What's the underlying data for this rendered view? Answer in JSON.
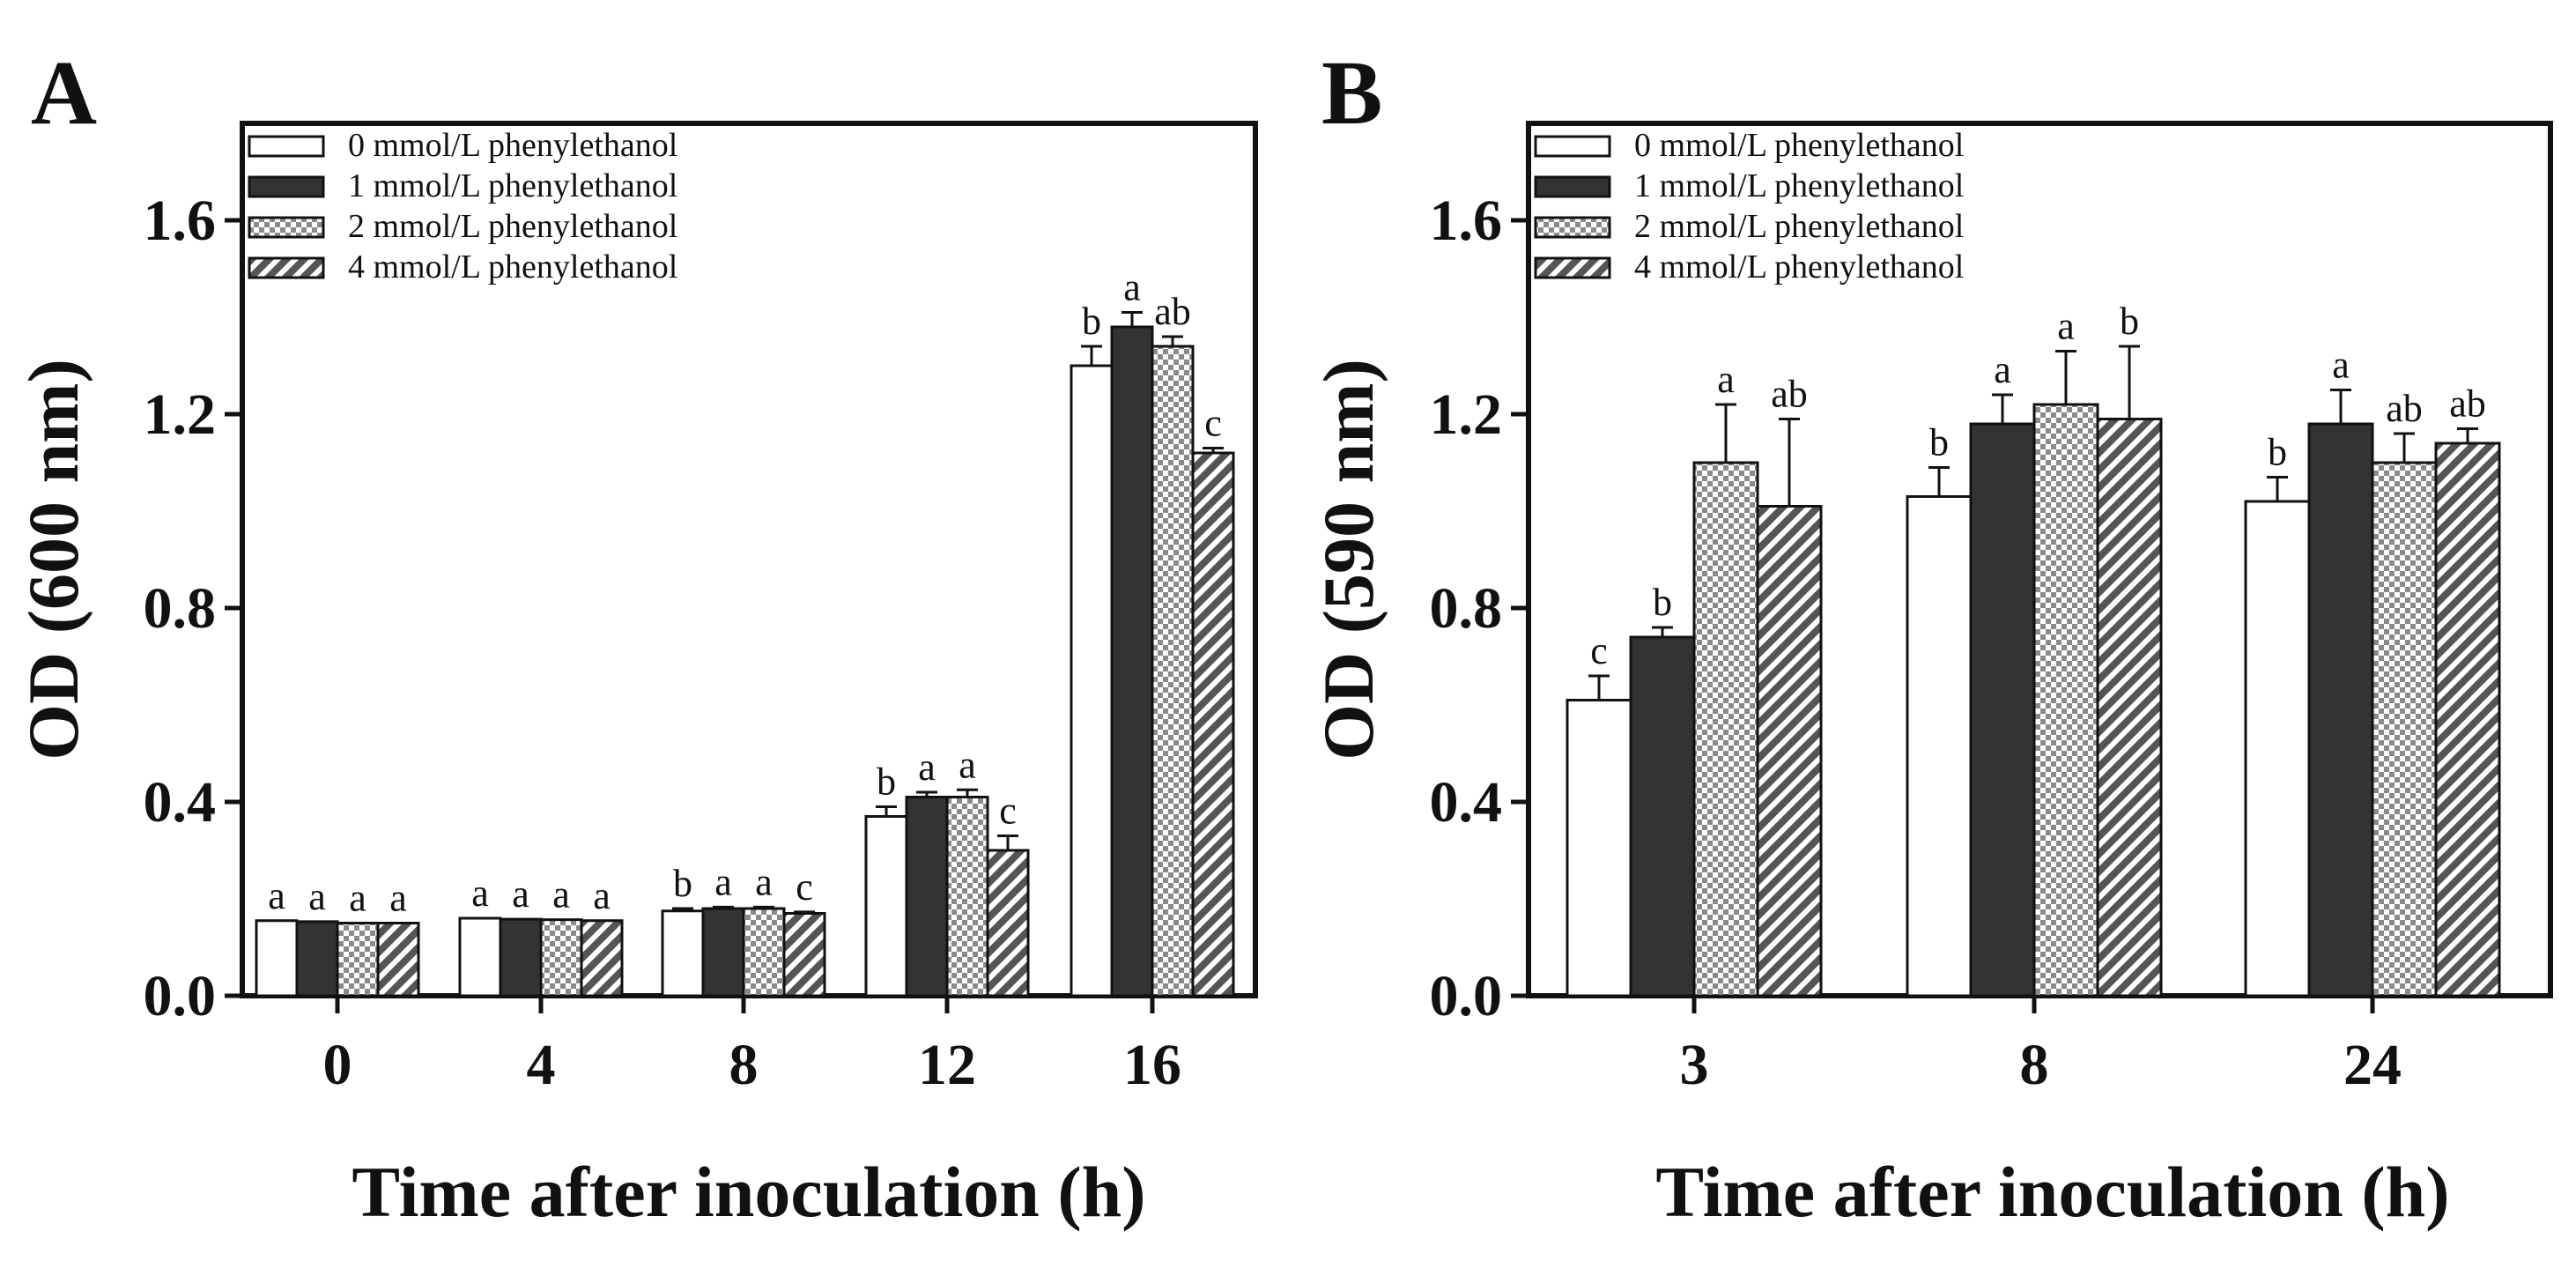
{
  "legend": {
    "entries": [
      {
        "label": "0 mmol/L phenylethanol",
        "fill": "white"
      },
      {
        "label": "1 mmol/L phenylethanol",
        "fill": "dark"
      },
      {
        "label": "2 mmol/L phenylethanol",
        "fill": "checker"
      },
      {
        "label": "4 mmol/L phenylethanol",
        "fill": "hatch"
      }
    ]
  },
  "colors": {
    "dark": "#333333",
    "axis": "#111111",
    "checker": "#8a8a8a",
    "hatch": "#555555"
  },
  "chart_data": [
    {
      "panel": "A",
      "type": "bar",
      "title": "",
      "xlabel": "Time after inoculation (h)",
      "ylabel": "OD (600 nm)",
      "ylim": [
        0,
        1.8
      ],
      "yticks": [
        "0.0",
        "0.4",
        "0.8",
        "1.2",
        "1.6"
      ],
      "ytick_values": [
        0,
        0.4,
        0.8,
        1.2,
        1.6
      ],
      "categories": [
        "0",
        "4",
        "8",
        "12",
        "16"
      ],
      "series": [
        {
          "name": "0 mmol/L phenylethanol",
          "values": [
            0.155,
            0.16,
            0.175,
            0.37,
            1.3
          ],
          "errors": [
            0.0,
            0.0,
            0.005,
            0.02,
            0.04
          ],
          "labels": [
            "a",
            "a",
            "b",
            "b",
            "b"
          ]
        },
        {
          "name": "1 mmol/L phenylethanol",
          "values": [
            0.153,
            0.158,
            0.18,
            0.41,
            1.38
          ],
          "errors": [
            0.0,
            0.0,
            0.003,
            0.01,
            0.03
          ],
          "labels": [
            "a",
            "a",
            "a",
            "a",
            "a"
          ]
        },
        {
          "name": "2 mmol/L phenylethanol",
          "values": [
            0.15,
            0.157,
            0.18,
            0.41,
            1.34
          ],
          "errors": [
            0.0,
            0.0,
            0.003,
            0.015,
            0.02
          ],
          "labels": [
            "a",
            "a",
            "a",
            "a",
            "ab"
          ]
        },
        {
          "name": "4 mmol/L phenylethanol",
          "values": [
            0.15,
            0.155,
            0.17,
            0.3,
            1.12
          ],
          "errors": [
            0.0,
            0.0,
            0.003,
            0.03,
            0.01
          ],
          "labels": [
            "a",
            "a",
            "c",
            "c",
            "c"
          ]
        }
      ]
    },
    {
      "panel": "B",
      "type": "bar",
      "title": "",
      "xlabel": "Time after inoculation (h)",
      "ylabel": "OD (590 nm)",
      "ylim": [
        0,
        1.8
      ],
      "yticks": [
        "0.0",
        "0.4",
        "0.8",
        "1.2",
        "1.6"
      ],
      "ytick_values": [
        0,
        0.4,
        0.8,
        1.2,
        1.6
      ],
      "categories": [
        "3",
        "8",
        "24"
      ],
      "series": [
        {
          "name": "0 mmol/L phenylethanol",
          "values": [
            0.61,
            1.03,
            1.02
          ],
          "errors": [
            0.05,
            0.06,
            0.05
          ],
          "labels": [
            "c",
            "b",
            "b"
          ]
        },
        {
          "name": "1 mmol/L phenylethanol",
          "values": [
            0.74,
            1.18,
            1.18
          ],
          "errors": [
            0.02,
            0.06,
            0.07
          ],
          "labels": [
            "b",
            "a",
            "a"
          ]
        },
        {
          "name": "2 mmol/L phenylethanol",
          "values": [
            1.1,
            1.22,
            1.1
          ],
          "errors": [
            0.12,
            0.11,
            0.06
          ],
          "labels": [
            "a",
            "a",
            "ab"
          ]
        },
        {
          "name": "4 mmol/L phenylethanol",
          "values": [
            1.01,
            1.19,
            1.14
          ],
          "errors": [
            0.18,
            0.15,
            0.03
          ],
          "labels": [
            "ab",
            "b",
            "ab"
          ]
        }
      ]
    }
  ]
}
